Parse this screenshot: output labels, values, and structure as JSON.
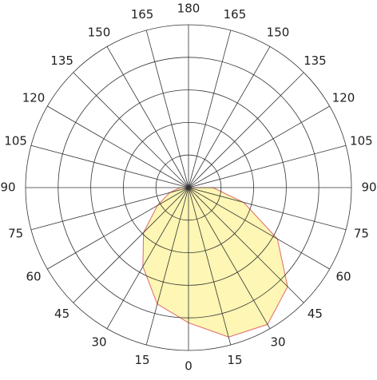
{
  "chart_data": {
    "type": "polar",
    "angle_labels": [
      0,
      15,
      30,
      45,
      60,
      75,
      90,
      105,
      120,
      135,
      150,
      165,
      180
    ],
    "rlim": [
      0,
      100
    ],
    "rticks": [
      20,
      40,
      60,
      80,
      100
    ],
    "series": [
      {
        "fill": "#fdf6b4",
        "color": "#e06a6a",
        "angles": [
          -90,
          -75,
          -60,
          -45,
          -30,
          -15,
          0,
          15,
          30,
          45,
          60,
          75,
          90
        ],
        "values": [
          5,
          12,
          22,
          39,
          56,
          74,
          83,
          95,
          97,
          86,
          63,
          35,
          15
        ]
      }
    ]
  }
}
